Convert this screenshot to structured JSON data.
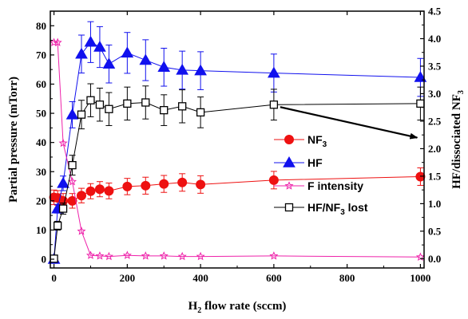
{
  "chart_data": {
    "type": "line",
    "xlabel": "H₂ flow rate (sccm)",
    "ylabel_left": "Partial pressure (mTorr)",
    "ylabel_right": "HF/dissociated NF₃",
    "xlim": [
      -10,
      1010
    ],
    "ylim_left": [
      -3,
      85
    ],
    "ylim_right": [
      -0.16875,
      4.5
    ],
    "x_ticks": [
      0,
      200,
      400,
      600,
      800,
      1000
    ],
    "y_left_ticks": [
      0,
      10,
      20,
      30,
      40,
      50,
      60,
      70,
      80
    ],
    "y_right_ticks": [
      "0.0",
      "0.5",
      "1.0",
      "1.5",
      "2.0",
      "2.5",
      "3.0",
      "3.5",
      "4.0",
      "4.5"
    ],
    "legend_position": "bottom-right",
    "series": [
      {
        "name": "NF₃",
        "axis": "left",
        "color": "#ee1111",
        "marker": "circle",
        "x": [
          0,
          10,
          25,
          50,
          75,
          100,
          125,
          150,
          200,
          250,
          300,
          350,
          400,
          600,
          1000
        ],
        "y": [
          21.2,
          21.0,
          20.0,
          20.0,
          21.8,
          23.3,
          24.0,
          23.4,
          24.9,
          25.2,
          25.8,
          26.3,
          25.6,
          27.1,
          28.3
        ],
        "err": [
          2.5,
          2.5,
          2.5,
          2.5,
          2.5,
          2.6,
          2.6,
          2.7,
          2.8,
          2.9,
          2.9,
          3.0,
          3.0,
          3.0,
          3.0
        ]
      },
      {
        "name": "HF",
        "axis": "left",
        "color": "#1111ee",
        "marker": "triangle",
        "x": [
          0,
          10,
          25,
          50,
          75,
          100,
          125,
          150,
          200,
          250,
          300,
          350,
          400,
          600,
          1000
        ],
        "y": [
          0,
          17.3,
          26.0,
          49.5,
          70.3,
          74.4,
          72.7,
          66.9,
          70.7,
          68.2,
          65.8,
          64.8,
          64.6,
          63.8,
          62.3
        ],
        "err": [
          0,
          1.5,
          2.5,
          4.5,
          6.5,
          7.0,
          7.0,
          6.5,
          7.0,
          7.0,
          6.5,
          6.5,
          6.5,
          6.5,
          6.5
        ]
      },
      {
        "name": "F intensity",
        "axis": "right",
        "color": "#ee22aa",
        "marker": "star",
        "x": [
          0,
          10,
          25,
          50,
          75,
          100,
          125,
          150,
          200,
          250,
          300,
          350,
          400,
          600,
          1000
        ],
        "y": [
          3.93,
          3.93,
          2.1,
          1.4,
          0.5,
          0.06,
          0.05,
          0.04,
          0.06,
          0.05,
          0.05,
          0.04,
          0.04,
          0.05,
          0.03
        ]
      },
      {
        "name": "HF/NF₃ lost",
        "axis": "right",
        "color": "#000000",
        "marker": "square-open",
        "x": [
          0,
          10,
          25,
          50,
          75,
          100,
          125,
          150,
          200,
          250,
          300,
          350,
          400,
          600,
          1000
        ],
        "y": [
          0,
          0.6,
          0.91,
          1.7,
          2.62,
          2.88,
          2.8,
          2.72,
          2.82,
          2.84,
          2.7,
          2.77,
          2.66,
          2.8,
          2.82
        ],
        "err": [
          0,
          0.08,
          0.1,
          0.18,
          0.26,
          0.3,
          0.3,
          0.3,
          0.3,
          0.3,
          0.28,
          0.3,
          0.28,
          0.28,
          0.3
        ]
      }
    ],
    "annotation": {
      "type": "arrow",
      "from": [
        600,
        2.8
      ],
      "to": [
        1000,
        2.2
      ]
    }
  }
}
